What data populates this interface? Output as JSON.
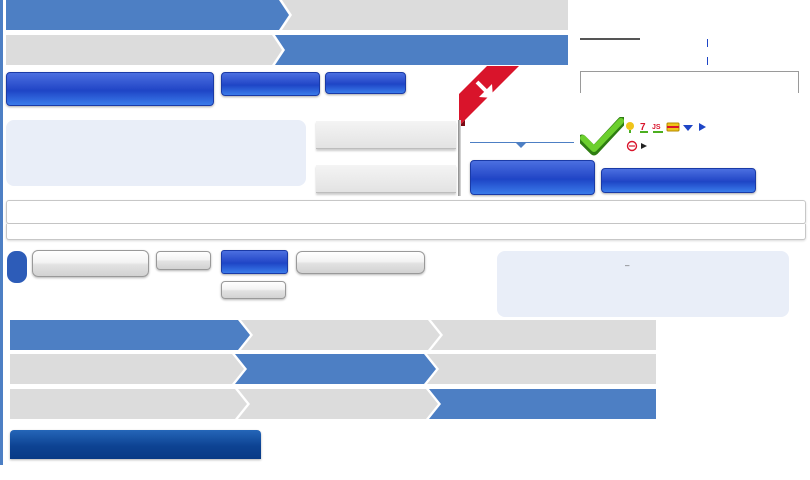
{
  "wizard_top": {
    "step1_label": "",
    "step2_label": ""
  },
  "top_buttons": {
    "large_label": "",
    "medium1_label": "",
    "medium2_label": ""
  },
  "right_top": {
    "small_text": "",
    "input_value": ""
  },
  "corner_badge": {
    "icon": "arrow-down-right-icon"
  },
  "tabs": {
    "tab1_label": "",
    "tab2_label": ""
  },
  "checkmark": {
    "icon": "checkmark-icon"
  },
  "toolbar_icons": [
    "pin-icon",
    "seven-icon",
    "js-icon",
    "card-icon",
    "dropdown-arrow-icon",
    "play-arrow-icon",
    "refresh-icon",
    "small-play-icon"
  ],
  "right_buttons": {
    "left_label": "",
    "right_label": ""
  },
  "search_bars": {
    "bar1_value": "",
    "bar2_value": ""
  },
  "row_buttons": {
    "pill_label": "",
    "gray1_label": "",
    "gray2_label": "",
    "blue_label": "",
    "gray3_label": "",
    "gray4_label": ""
  },
  "info_panel": {
    "text": "–"
  },
  "wizard_bottom": {
    "rows": [
      [
        "",
        "",
        ""
      ],
      [
        "",
        "",
        ""
      ],
      [
        "",
        "",
        ""
      ]
    ]
  },
  "footer_button": {
    "label": ""
  },
  "colors": {
    "accent_blue": "#4d7fc4",
    "button_blue": "#2448c8",
    "gray": "#dcdcdc",
    "panel": "#e9eef8",
    "badge_red": "#d9142b",
    "check_green": "#4caf20"
  }
}
